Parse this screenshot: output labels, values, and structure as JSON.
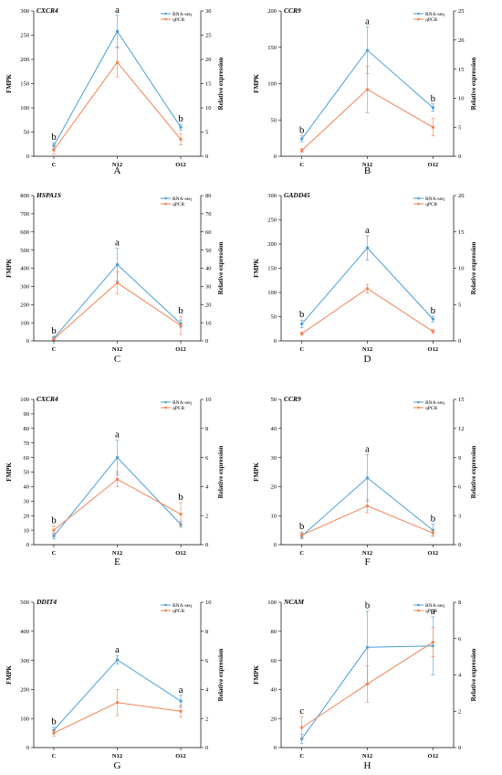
{
  "colors": {
    "rnaseq": "#4a9fd5",
    "qpcr": "#ee8255"
  },
  "chart_data": [
    {
      "type": "line",
      "panel": "A",
      "gene": "CXCR4",
      "categories": [
        "C",
        "N12",
        "O12"
      ],
      "ylabel": "FMPK",
      "y2label": "Relative expression",
      "ylim": [
        0,
        300
      ],
      "yticks": [
        0,
        50,
        100,
        150,
        200,
        250,
        300
      ],
      "y2lim": [
        0,
        30
      ],
      "y2ticks": [
        0,
        5,
        10,
        15,
        20,
        25,
        30
      ],
      "series": [
        {
          "name": "RNA-seq",
          "axis": "left",
          "values": [
            22,
            258,
            60
          ],
          "errors": [
            6,
            33,
            6
          ]
        },
        {
          "name": "qPCR",
          "axis": "right",
          "values": [
            1.3,
            19.4,
            3.5
          ],
          "errors": [
            0.8,
            3.0,
            1.2
          ]
        }
      ],
      "letters": [
        "b",
        "a",
        "b"
      ],
      "legend": "top-right"
    },
    {
      "type": "line",
      "panel": "B",
      "gene": "CCR9",
      "categories": [
        "C",
        "N12",
        "O12"
      ],
      "ylabel": "FMPK",
      "y2label": "Relative expression",
      "ylim": [
        0,
        200
      ],
      "yticks": [
        0,
        50,
        100,
        150,
        200
      ],
      "y2lim": [
        0,
        25
      ],
      "y2ticks": [
        0,
        5,
        10,
        15,
        20,
        25
      ],
      "series": [
        {
          "name": "RNA-seq",
          "axis": "left",
          "values": [
            24,
            146,
            67
          ],
          "errors": [
            4,
            32,
            5
          ]
        },
        {
          "name": "qPCR",
          "axis": "right",
          "values": [
            1.0,
            11.5,
            5.0
          ],
          "errors": [
            0.3,
            4.0,
            1.5
          ]
        }
      ],
      "letters": [
        "b",
        "a",
        "b"
      ],
      "legend": "top-right"
    },
    {
      "type": "line",
      "panel": "C",
      "gene": "HSPA1S",
      "categories": [
        "C",
        "N12",
        "O12"
      ],
      "ylabel": "FMPK",
      "y2label": "Relative expression",
      "ylim": [
        0,
        800
      ],
      "yticks": [
        0,
        100,
        200,
        300,
        400,
        500,
        600,
        700,
        800
      ],
      "y2lim": [
        0,
        80
      ],
      "y2ticks": [
        0,
        10,
        20,
        30,
        40,
        50,
        60,
        70,
        80
      ],
      "series": [
        {
          "name": "RNA-seq",
          "axis": "left",
          "values": [
            15,
            420,
            95
          ],
          "errors": [
            10,
            90,
            20
          ]
        },
        {
          "name": "qPCR",
          "axis": "right",
          "values": [
            1.0,
            32.0,
            8.5
          ],
          "errors": [
            0.5,
            6.0,
            5.0
          ]
        }
      ],
      "letters": [
        "b",
        "a",
        "b"
      ],
      "legend": "top-right"
    },
    {
      "type": "line",
      "panel": "D",
      "gene": "GADD45",
      "categories": [
        "C",
        "N12",
        "O12"
      ],
      "ylabel": "FMPK",
      "y2label": "Relative expression",
      "ylim": [
        0,
        300
      ],
      "yticks": [
        0,
        50,
        100,
        150,
        200,
        250,
        300
      ],
      "y2lim": [
        0,
        20
      ],
      "y2ticks": [
        0,
        5,
        10,
        15,
        20
      ],
      "series": [
        {
          "name": "RNA-seq",
          "axis": "left",
          "values": [
            35,
            192,
            45
          ],
          "errors": [
            8,
            25,
            6
          ]
        },
        {
          "name": "qPCR",
          "axis": "right",
          "values": [
            1.0,
            7.2,
            1.3
          ],
          "errors": [
            0.2,
            0.6,
            0.3
          ]
        }
      ],
      "letters": [
        "b",
        "a",
        "b"
      ],
      "legend": "top-right"
    },
    {
      "type": "line",
      "panel": "E",
      "gene": "CXCR4",
      "categories": [
        "C",
        "N12",
        "O12"
      ],
      "ylabel": "FMPK",
      "y2label": "Relative expression",
      "ylim": [
        0,
        100
      ],
      "yticks": [
        0,
        10,
        20,
        30,
        40,
        50,
        60,
        70,
        80,
        90,
        100
      ],
      "y2lim": [
        0,
        10
      ],
      "y2ticks": [
        0,
        2,
        4,
        6,
        8,
        10
      ],
      "series": [
        {
          "name": "RNA-seq",
          "axis": "left",
          "values": [
            6,
            60,
            14
          ],
          "errors": [
            2,
            12,
            2
          ]
        },
        {
          "name": "qPCR",
          "axis": "right",
          "values": [
            1.0,
            4.5,
            2.1
          ],
          "errors": [
            0.3,
            0.5,
            0.8
          ]
        }
      ],
      "letters": [
        "b",
        "a",
        "b"
      ],
      "legend": "top-right"
    },
    {
      "type": "line",
      "panel": "F",
      "gene": "CCR9",
      "categories": [
        "C",
        "N12",
        "O12"
      ],
      "ylabel": "FMPK",
      "y2label": "Relative expression",
      "ylim": [
        0,
        50
      ],
      "yticks": [
        0,
        10,
        20,
        30,
        40,
        50
      ],
      "y2lim": [
        0,
        15
      ],
      "y2ticks": [
        0,
        3,
        6,
        9,
        12,
        15
      ],
      "series": [
        {
          "name": "RNA-seq",
          "axis": "left",
          "values": [
            3,
            23,
            5
          ],
          "errors": [
            1,
            8,
            2
          ]
        },
        {
          "name": "qPCR",
          "axis": "right",
          "values": [
            1.0,
            4.0,
            1.2
          ],
          "errors": [
            0.3,
            0.7,
            0.3
          ]
        }
      ],
      "letters": [
        "b",
        "a",
        "b"
      ],
      "legend": "top-right"
    },
    {
      "type": "line",
      "panel": "G",
      "gene": "DDIT4",
      "categories": [
        "C",
        "N12",
        "O12"
      ],
      "ylabel": "FMPK",
      "y2label": "Relative expression",
      "ylim": [
        0,
        500
      ],
      "yticks": [
        0,
        100,
        200,
        300,
        400,
        500
      ],
      "y2lim": [
        0,
        10
      ],
      "y2ticks": [
        0,
        2,
        4,
        6,
        8,
        10
      ],
      "series": [
        {
          "name": "RNA-seq",
          "axis": "left",
          "values": [
            60,
            302,
            160
          ],
          "errors": [
            10,
            15,
            20
          ]
        },
        {
          "name": "qPCR",
          "axis": "right",
          "values": [
            1.0,
            3.1,
            2.5
          ],
          "errors": [
            0.2,
            0.9,
            0.4
          ]
        }
      ],
      "letters": [
        "b",
        "a",
        "a"
      ],
      "legend": "top-right"
    },
    {
      "type": "line",
      "panel": "H",
      "gene": "NCAM",
      "categories": [
        "C",
        "N12",
        "O12"
      ],
      "ylabel": "FMPK",
      "y2label": "Relative expression",
      "ylim": [
        0,
        100
      ],
      "yticks": [
        0,
        20,
        40,
        60,
        80,
        100
      ],
      "y2lim": [
        0,
        8
      ],
      "y2ticks": [
        0,
        2,
        4,
        6,
        8
      ],
      "series": [
        {
          "name": "RNA-seq",
          "axis": "left",
          "values": [
            6,
            69,
            70
          ],
          "errors": [
            3,
            25,
            20
          ]
        },
        {
          "name": "qPCR",
          "axis": "right",
          "values": [
            1.1,
            3.5,
            5.8
          ],
          "errors": [
            0.6,
            1.0,
            0.8
          ]
        }
      ],
      "letters": [
        "c",
        "b",
        "a"
      ],
      "legend": "top-right"
    }
  ]
}
